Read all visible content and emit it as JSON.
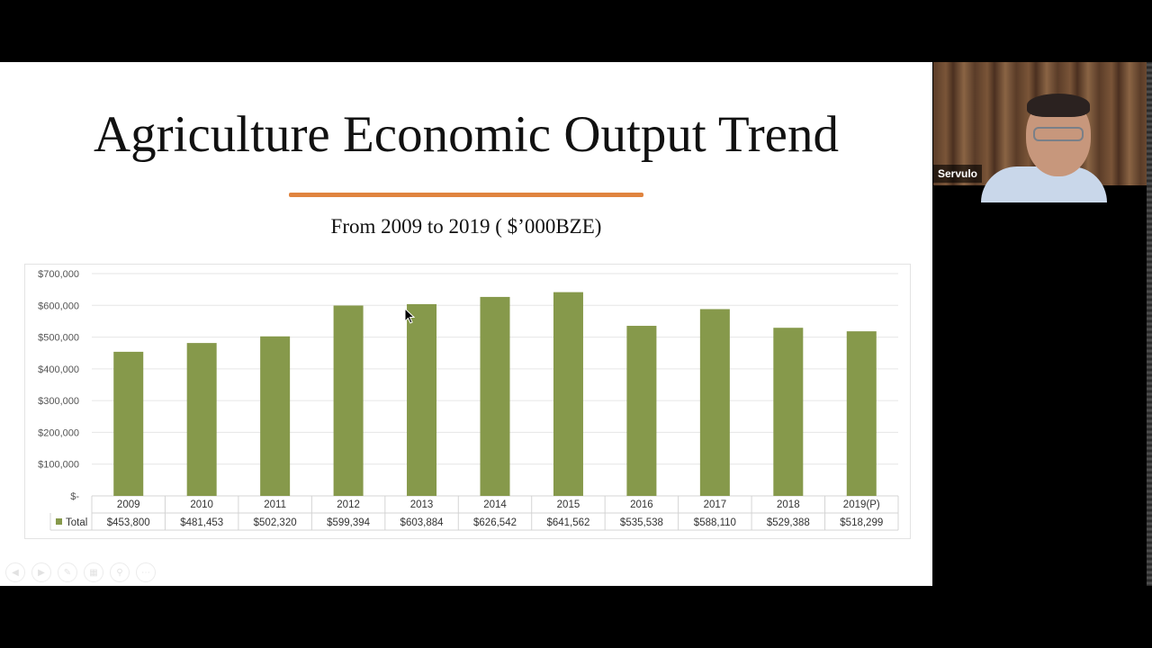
{
  "slide": {
    "title": "Agriculture Economic Output Trend",
    "subtitle": "From 2009 to 2019 ( $’000BZE)",
    "accent_color": "#e0843f"
  },
  "participant": {
    "name": "Servulo"
  },
  "presentation_controls": [
    "prev-icon",
    "next-icon",
    "pen-icon",
    "slides-icon",
    "zoom-icon",
    "more-icon"
  ],
  "chart_data": {
    "type": "bar",
    "categories": [
      "2009",
      "2010",
      "2011",
      "2012",
      "2013",
      "2014",
      "2015",
      "2016",
      "2017",
      "2018",
      "2019(P)"
    ],
    "series": [
      {
        "name": "Total",
        "color": "#86994b",
        "values": [
          453800,
          481453,
          502320,
          599394,
          603884,
          626542,
          641562,
          535538,
          588110,
          529388,
          518299
        ],
        "labels": [
          "$453,800",
          "$481,453",
          "$502,320",
          "$599,394",
          "$603,884",
          "$626,542",
          "$641,562",
          "$535,538",
          "$588,110",
          "$529,388",
          "$518,299"
        ]
      }
    ],
    "ylim": [
      0,
      700000
    ],
    "yticks": [
      0,
      100000,
      200000,
      300000,
      400000,
      500000,
      600000,
      700000
    ],
    "ytick_labels": [
      "$-",
      "$100,000",
      "$200,000",
      "$300,000",
      "$400,000",
      "$500,000",
      "$600,000",
      "$700,000"
    ],
    "grid": true,
    "data_table": true
  }
}
